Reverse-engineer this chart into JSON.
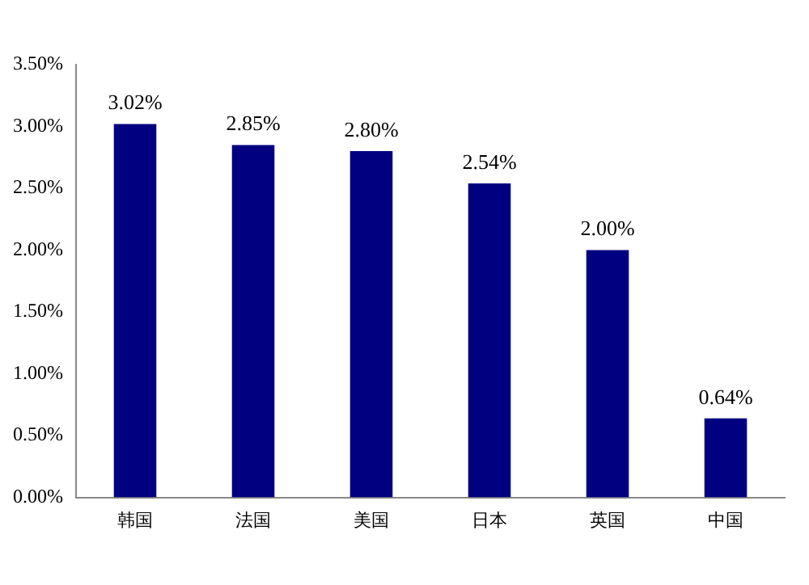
{
  "chart_data": {
    "type": "bar",
    "categories": [
      "韩国",
      "法国",
      "美国",
      "日本",
      "英国",
      "中国"
    ],
    "values": [
      3.02,
      2.85,
      2.8,
      2.54,
      2.0,
      0.64
    ],
    "color": "#000080",
    "value_labels": [
      "3.02%",
      "2.85%",
      "2.80%",
      "2.54%",
      "2.00%",
      "0.64%"
    ],
    "ylim": [
      0,
      3.5
    ],
    "yticks": [
      {
        "value": 0,
        "label": "0.00%"
      },
      {
        "value": 0.5,
        "label": "0.50%"
      },
      {
        "value": 1,
        "label": "1.00%"
      },
      {
        "value": 1.5,
        "label": "1.50%"
      },
      {
        "value": 2,
        "label": "2.00%"
      },
      {
        "value": 2.5,
        "label": "2.50%"
      },
      {
        "value": 3,
        "label": "3.00%"
      },
      {
        "value": 3.5,
        "label": "3.50%"
      }
    ],
    "grid": false,
    "legend": false
  }
}
